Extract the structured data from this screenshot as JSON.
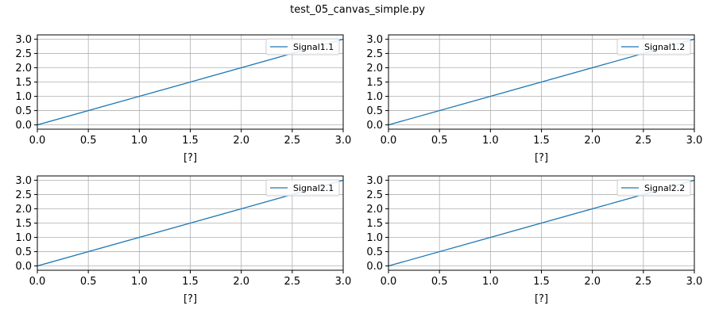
{
  "figure": {
    "title": "test_05_canvas_simple.py"
  },
  "colors": {
    "line": "#1f77b4",
    "grid": "#b0b0b0",
    "axes": "#000000",
    "legend_border": "#cccccc",
    "background": "#ffffff"
  },
  "chart_data": [
    {
      "type": "line",
      "title": "",
      "xlabel": "[?]",
      "ylabel": "",
      "xlim": [
        0,
        3
      ],
      "ylim": [
        -0.15,
        3.15
      ],
      "xticks": [
        "0.0",
        "0.5",
        "1.0",
        "1.5",
        "2.0",
        "2.5",
        "3.0"
      ],
      "yticks": [
        "0.0",
        "0.5",
        "1.0",
        "1.5",
        "2.0",
        "2.5",
        "3.0"
      ],
      "grid": true,
      "legend_position": "top-right",
      "series": [
        {
          "name": "Signal1.1",
          "x": [
            0,
            3
          ],
          "y": [
            0,
            3
          ]
        }
      ]
    },
    {
      "type": "line",
      "title": "",
      "xlabel": "[?]",
      "ylabel": "",
      "xlim": [
        0,
        3
      ],
      "ylim": [
        -0.15,
        3.15
      ],
      "xticks": [
        "0.0",
        "0.5",
        "1.0",
        "1.5",
        "2.0",
        "2.5",
        "3.0"
      ],
      "yticks": [
        "0.0",
        "0.5",
        "1.0",
        "1.5",
        "2.0",
        "2.5",
        "3.0"
      ],
      "grid": true,
      "legend_position": "top-right",
      "series": [
        {
          "name": "Signal1.2",
          "x": [
            0,
            3
          ],
          "y": [
            0,
            3
          ]
        }
      ]
    },
    {
      "type": "line",
      "title": "",
      "xlabel": "[?]",
      "ylabel": "",
      "xlim": [
        0,
        3
      ],
      "ylim": [
        -0.15,
        3.15
      ],
      "xticks": [
        "0.0",
        "0.5",
        "1.0",
        "1.5",
        "2.0",
        "2.5",
        "3.0"
      ],
      "yticks": [
        "0.0",
        "0.5",
        "1.0",
        "1.5",
        "2.0",
        "2.5",
        "3.0"
      ],
      "grid": true,
      "legend_position": "top-right",
      "series": [
        {
          "name": "Signal2.1",
          "x": [
            0,
            3
          ],
          "y": [
            0,
            3
          ]
        }
      ]
    },
    {
      "type": "line",
      "title": "",
      "xlabel": "[?]",
      "ylabel": "",
      "xlim": [
        0,
        3
      ],
      "ylim": [
        -0.15,
        3.15
      ],
      "xticks": [
        "0.0",
        "0.5",
        "1.0",
        "1.5",
        "2.0",
        "2.5",
        "3.0"
      ],
      "yticks": [
        "0.0",
        "0.5",
        "1.0",
        "1.5",
        "2.0",
        "2.5",
        "3.0"
      ],
      "grid": true,
      "legend_position": "top-right",
      "series": [
        {
          "name": "Signal2.2",
          "x": [
            0,
            3
          ],
          "y": [
            0,
            3
          ]
        }
      ]
    }
  ]
}
